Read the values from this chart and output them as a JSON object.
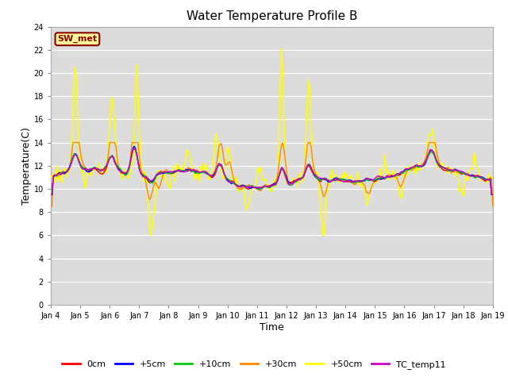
{
  "title": "Water Temperature Profile B",
  "xlabel": "Time",
  "ylabel": "Temperature(C)",
  "ylim": [
    0,
    24
  ],
  "yticks": [
    0,
    2,
    4,
    6,
    8,
    10,
    12,
    14,
    16,
    18,
    20,
    22,
    24
  ],
  "plot_bg_color": "#dcdcdc",
  "fig_bg_color": "#ffffff",
  "annotation_text": "SW_met",
  "annotation_bg": "#ffff99",
  "annotation_border": "#8b0000",
  "annotation_text_color": "#8b0000",
  "series": [
    {
      "label": "0cm",
      "color": "#ff0000",
      "lw": 1.0,
      "zorder": 5
    },
    {
      "label": "+5cm",
      "color": "#0000ff",
      "lw": 1.0,
      "zorder": 5
    },
    {
      "label": "+10cm",
      "color": "#00cc00",
      "lw": 1.0,
      "zorder": 5
    },
    {
      "label": "+30cm",
      "color": "#ff8800",
      "lw": 1.0,
      "zorder": 4
    },
    {
      "label": "+50cm",
      "color": "#ffff00",
      "lw": 1.2,
      "zorder": 3
    },
    {
      "label": "TC_temp11",
      "color": "#cc00cc",
      "lw": 1.0,
      "zorder": 5
    }
  ],
  "x_tick_labels": [
    "Jan 4",
    "Jan 5",
    "Jan 6",
    "Jan 7",
    "Jan 8",
    "Jan 9",
    "Jan 10",
    "Jan 11",
    "Jan 12",
    "Jan 13",
    "Jan 14",
    "Jan 15",
    "Jan 16",
    "Jan 17",
    "Jan 18",
    "Jan 19"
  ],
  "x_tick_positions": [
    0,
    24,
    48,
    72,
    96,
    120,
    144,
    168,
    192,
    216,
    240,
    264,
    288,
    312,
    336,
    360
  ]
}
